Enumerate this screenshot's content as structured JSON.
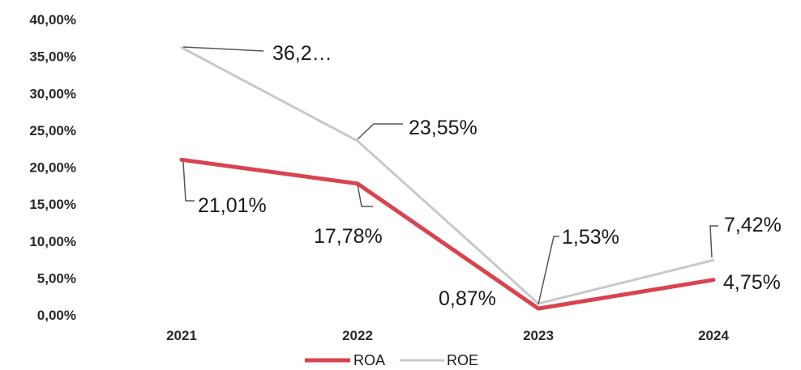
{
  "chart_data": {
    "type": "line",
    "categories": [
      "2021",
      "2022",
      "2023",
      "2024"
    ],
    "ylim": [
      0,
      40
    ],
    "yticks": [
      "0,00%",
      "5,00%",
      "10,00%",
      "15,00%",
      "20,00%",
      "25,00%",
      "30,00%",
      "35,00%",
      "40,00%"
    ],
    "grid": false,
    "legend": "bottom",
    "series": [
      {
        "name": "ROA",
        "color": "#d9434f",
        "values": [
          21.01,
          17.78,
          0.87,
          4.75
        ],
        "labels": [
          "21,01%",
          "17,78%",
          "0,87%",
          "4,75%"
        ]
      },
      {
        "name": "ROE",
        "color": "#c8c8c8",
        "values": [
          36.2,
          23.55,
          1.53,
          7.42
        ],
        "labels": [
          "36,2…",
          "23,55%",
          "1,53%",
          "7,42%"
        ]
      }
    ]
  }
}
